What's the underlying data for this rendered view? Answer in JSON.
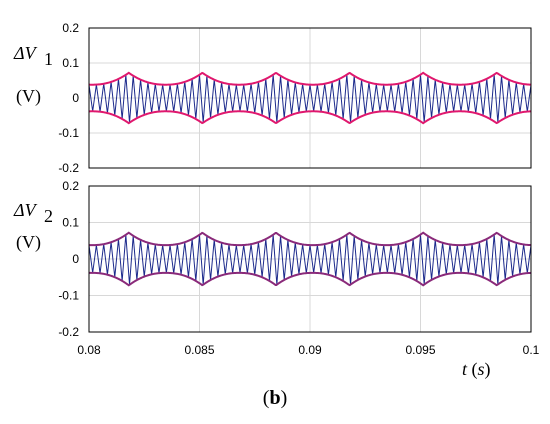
{
  "figure": {
    "caption_open": "(",
    "caption_letter": "b",
    "caption_close": ")",
    "xlabel_var": "t",
    "xlabel_unit_open": " (",
    "xlabel_unit": "s",
    "xlabel_unit_close": ")"
  },
  "chart_data": [
    {
      "type": "line",
      "panel": "top",
      "ylabel_symbol": "ΔV",
      "ylabel_sub": "1",
      "ylabel_unit": "(V)",
      "xlim": [
        0.08,
        0.1
      ],
      "ylim": [
        -0.2,
        0.2
      ],
      "xticks": [
        0.08,
        0.085,
        0.09,
        0.095,
        0.1
      ],
      "xtick_labels": [
        "",
        "",
        "",
        "",
        ""
      ],
      "yticks": [
        0.2,
        0.1,
        0,
        -0.1,
        -0.2
      ],
      "ytick_labels": [
        "0.2",
        "0.1",
        "0",
        "-0.1",
        "-0.2"
      ],
      "grid": true,
      "ripple_color": "#1c2a8c",
      "envelope_color": "#e0186e",
      "ripple_cycles": 60,
      "envelope_period": 0.00333,
      "envelope_phase": 0.0818,
      "envelope_peak": 0.072,
      "envelope_valley": 0.038
    },
    {
      "type": "line",
      "panel": "bottom",
      "ylabel_symbol": "ΔV",
      "ylabel_sub": "2",
      "ylabel_unit": "(V)",
      "xlim": [
        0.08,
        0.1
      ],
      "ylim": [
        -0.2,
        0.2
      ],
      "xticks": [
        0.08,
        0.085,
        0.09,
        0.095,
        0.1
      ],
      "xtick_labels": [
        "0.08",
        "0.085",
        "0.09",
        "0.095",
        "0.1"
      ],
      "yticks": [
        0.2,
        0.1,
        0,
        -0.1,
        -0.2
      ],
      "ytick_labels": [
        "0.2",
        "0.1",
        "0",
        "-0.1",
        "-0.2"
      ],
      "grid": true,
      "ripple_color": "#1c2a8c",
      "envelope_color": "#8a2a7a",
      "ripple_cycles": 60,
      "envelope_period": 0.00333,
      "envelope_phase": 0.0818,
      "envelope_peak": 0.072,
      "envelope_valley": 0.038
    }
  ]
}
